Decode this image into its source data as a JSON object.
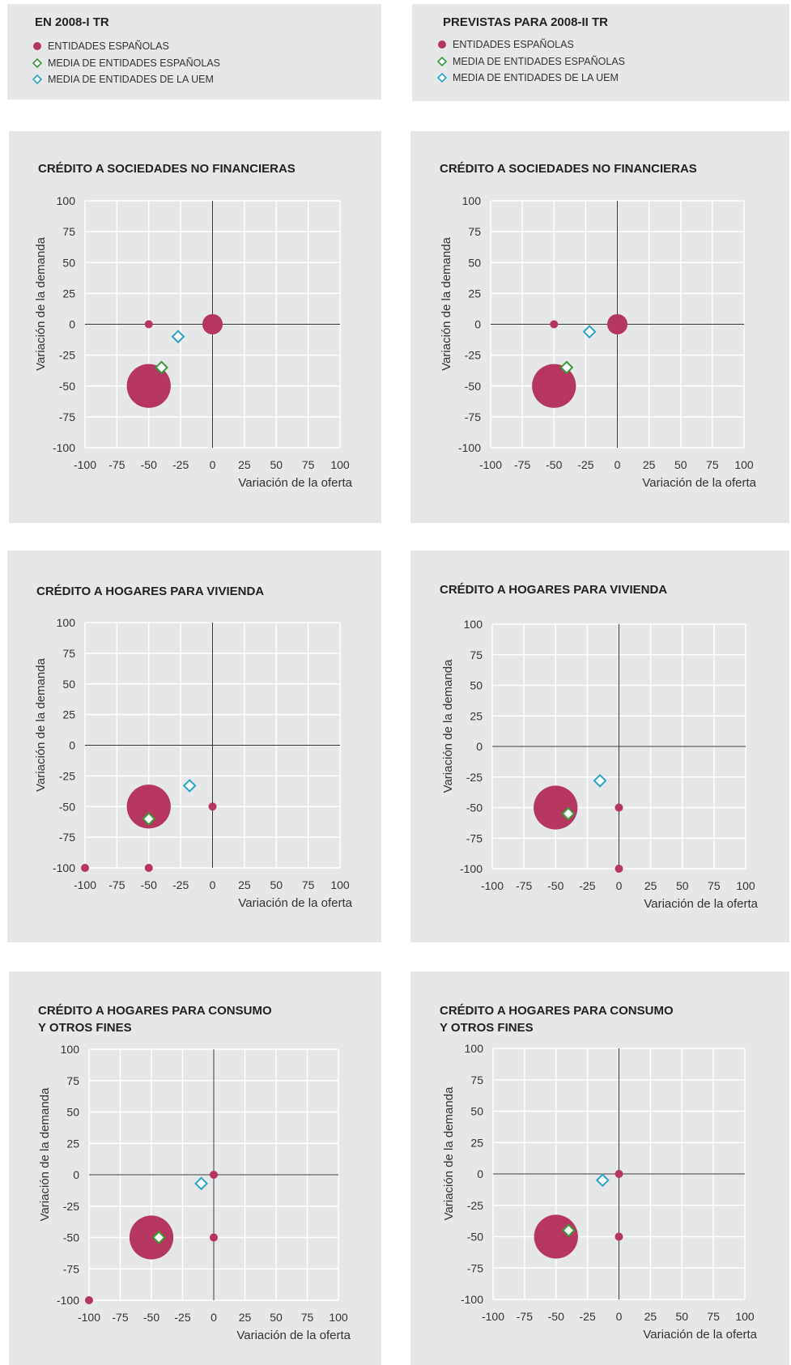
{
  "legends": [
    {
      "title": "EN 2008-I TR",
      "items": [
        {
          "label": "ENTIDADES ESPAÑOLAS",
          "marker": "dot"
        },
        {
          "label": "MEDIA  DE ENTIDADES ESPAÑOLAS",
          "marker": "diamond-green"
        },
        {
          "label": "MEDIA DE ENTIDADES DE LA UEM",
          "marker": "diamond-blue"
        }
      ]
    },
    {
      "title": "PREVISTAS PARA 2008-II TR",
      "items": [
        {
          "label": "ENTIDADES ESPAÑOLAS",
          "marker": "dot"
        },
        {
          "label": "MEDIA  DE ENTIDADES ESPAÑOLAS",
          "marker": "diamond-green"
        },
        {
          "label": "MEDIA DE ENTIDADES DE LA UEM",
          "marker": "diamond-blue"
        }
      ]
    }
  ],
  "colors": {
    "spanish_entities": "#b5375f",
    "spanish_mean": "#3a9a3a",
    "uem_mean": "#29a3c6",
    "panel_bg": "#e6e7e8",
    "grid": "#ffffff",
    "axis": "#333333"
  },
  "chart_data": [
    {
      "type": "scatter",
      "title": "CRÉDITO A SOCIEDADES NO FINANCIERAS",
      "xlabel": "Variación de la oferta",
      "ylabel": "Variación de la demanda",
      "xlim": [
        -100,
        100
      ],
      "ylim": [
        -100,
        100
      ],
      "xticks": [
        "-100",
        "-75",
        "-50",
        "-25",
        "0",
        "25",
        "50",
        "75",
        "100"
      ],
      "yticks": [
        "100",
        "75",
        "50",
        "25",
        "0",
        "-25",
        "-50",
        "-75",
        "-100"
      ],
      "grid": true,
      "entities": [
        {
          "x": -50,
          "y": 0,
          "weight": 1
        },
        {
          "x": 0,
          "y": 0,
          "weight": 3
        },
        {
          "x": -50,
          "y": -50,
          "weight": 14
        }
      ],
      "spanish_mean": {
        "x": -40,
        "y": -35
      },
      "uem_mean": {
        "x": -27,
        "y": -10
      }
    },
    {
      "type": "scatter",
      "title": "CRÉDITO A SOCIEDADES NO FINANCIERAS",
      "xlabel": "Variación de la oferta",
      "ylabel": "Variación de la demanda",
      "xlim": [
        -100,
        100
      ],
      "ylim": [
        -100,
        100
      ],
      "xticks": [
        "-100",
        "-75",
        "-50",
        "-25",
        "0",
        "25",
        "50",
        "75",
        "100"
      ],
      "yticks": [
        "100",
        "75",
        "50",
        "25",
        "0",
        "-25",
        "-50",
        "-75",
        "-100"
      ],
      "grid": true,
      "entities": [
        {
          "x": -50,
          "y": 0,
          "weight": 1
        },
        {
          "x": 0,
          "y": 0,
          "weight": 3
        },
        {
          "x": -50,
          "y": -50,
          "weight": 14
        }
      ],
      "spanish_mean": {
        "x": -40,
        "y": -35
      },
      "uem_mean": {
        "x": -22,
        "y": -6
      }
    },
    {
      "type": "scatter",
      "title": "CRÉDITO A HOGARES PARA VIVIENDA",
      "xlabel": "Variación de la oferta",
      "ylabel": "Variación de la demanda",
      "xlim": [
        -100,
        100
      ],
      "ylim": [
        -100,
        100
      ],
      "xticks": [
        "-100",
        "-75",
        "-50",
        "-25",
        "0",
        "25",
        "50",
        "75",
        "100"
      ],
      "yticks": [
        "100",
        "75",
        "50",
        "25",
        "0",
        "-25",
        "-50",
        "-75",
        "-100"
      ],
      "grid": true,
      "entities": [
        {
          "x": 0,
          "y": -50,
          "weight": 1
        },
        {
          "x": -100,
          "y": -100,
          "weight": 1
        },
        {
          "x": -50,
          "y": -100,
          "weight": 1
        },
        {
          "x": -50,
          "y": -50,
          "weight": 14
        }
      ],
      "spanish_mean": {
        "x": -50,
        "y": -60
      },
      "uem_mean": {
        "x": -18,
        "y": -33
      }
    },
    {
      "type": "scatter",
      "title": "CRÉDITO A HOGARES PARA VIVIENDA",
      "xlabel": "Variación de la oferta",
      "ylabel": "Variación de la demanda",
      "xlim": [
        -100,
        100
      ],
      "ylim": [
        -100,
        100
      ],
      "xticks": [
        "-100",
        "-75",
        "-50",
        "-25",
        "0",
        "25",
        "50",
        "75",
        "100"
      ],
      "yticks": [
        "100",
        "75",
        "50",
        "25",
        "0",
        "-25",
        "-50",
        "-75",
        "-100"
      ],
      "grid": true,
      "entities": [
        {
          "x": 0,
          "y": -50,
          "weight": 1
        },
        {
          "x": 0,
          "y": -100,
          "weight": 1
        },
        {
          "x": -50,
          "y": -50,
          "weight": 14
        }
      ],
      "spanish_mean": {
        "x": -40,
        "y": -55
      },
      "uem_mean": {
        "x": -15,
        "y": -28
      }
    },
    {
      "type": "scatter",
      "title": "CRÉDITO A HOGARES PARA CONSUMO\nY OTROS FINES",
      "xlabel": "Variación de la oferta",
      "ylabel": "Variación de la demanda",
      "xlim": [
        -100,
        100
      ],
      "ylim": [
        -100,
        100
      ],
      "xticks": [
        "-100",
        "-75",
        "-50",
        "-25",
        "0",
        "25",
        "50",
        "75",
        "100"
      ],
      "yticks": [
        "100",
        "75",
        "50",
        "25",
        "0",
        "-25",
        "-50",
        "-75",
        "-100"
      ],
      "grid": true,
      "entities": [
        {
          "x": 0,
          "y": 0,
          "weight": 1
        },
        {
          "x": 0,
          "y": -50,
          "weight": 1
        },
        {
          "x": -100,
          "y": -100,
          "weight": 1
        },
        {
          "x": -50,
          "y": -50,
          "weight": 14
        }
      ],
      "spanish_mean": {
        "x": -44,
        "y": -50
      },
      "uem_mean": {
        "x": -10,
        "y": -7
      }
    },
    {
      "type": "scatter",
      "title": "CRÉDITO A HOGARES PARA CONSUMO\nY OTROS FINES",
      "xlabel": "Variación de la oferta",
      "ylabel": "Variación de la demanda",
      "xlim": [
        -100,
        100
      ],
      "ylim": [
        -100,
        100
      ],
      "xticks": [
        "-100",
        "-75",
        "-50",
        "-25",
        "0",
        "25",
        "50",
        "75",
        "100"
      ],
      "yticks": [
        "100",
        "75",
        "50",
        "25",
        "0",
        "-25",
        "-50",
        "-75",
        "-100"
      ],
      "grid": true,
      "entities": [
        {
          "x": 0,
          "y": 0,
          "weight": 1
        },
        {
          "x": 0,
          "y": -50,
          "weight": 1
        },
        {
          "x": -50,
          "y": -50,
          "weight": 14
        }
      ],
      "spanish_mean": {
        "x": -40,
        "y": -45
      },
      "uem_mean": {
        "x": -13,
        "y": -5
      }
    }
  ]
}
